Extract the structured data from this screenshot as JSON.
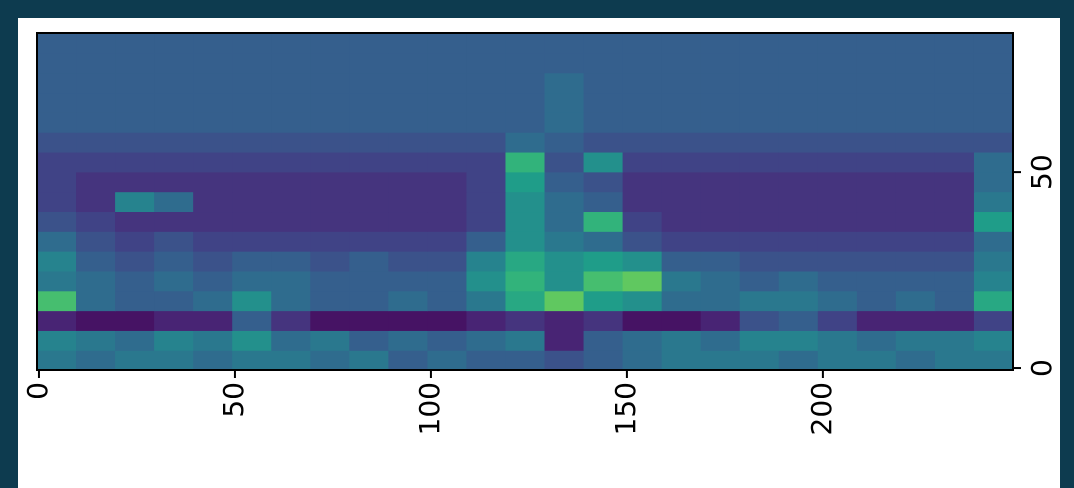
{
  "chart_data": {
    "type": "heatmap",
    "xlim": [
      -0.5,
      248.5
    ],
    "ylim": [
      -0.5,
      85.5
    ],
    "xticks": [
      0,
      50,
      100,
      150,
      200
    ],
    "yticks": [
      0,
      50
    ],
    "y_axis_position": "right",
    "colormap": "viridis",
    "z": [
      [
        0.4,
        0.35,
        0.4,
        0.4,
        0.35,
        0.4,
        0.4,
        0.35,
        0.4,
        0.3,
        0.35,
        0.3,
        0.3,
        0.25,
        0.3,
        0.35,
        0.4,
        0.4,
        0.4,
        0.35,
        0.4,
        0.4,
        0.35,
        0.4,
        0.4
      ],
      [
        0.45,
        0.4,
        0.35,
        0.45,
        0.4,
        0.5,
        0.35,
        0.4,
        0.3,
        0.35,
        0.3,
        0.35,
        0.4,
        0.1,
        0.3,
        0.35,
        0.4,
        0.35,
        0.45,
        0.45,
        0.4,
        0.35,
        0.4,
        0.4,
        0.45
      ],
      [
        0.1,
        0.05,
        0.05,
        0.1,
        0.1,
        0.3,
        0.15,
        0.05,
        0.05,
        0.05,
        0.05,
        0.1,
        0.15,
        0.1,
        0.15,
        0.05,
        0.05,
        0.1,
        0.25,
        0.3,
        0.2,
        0.1,
        0.1,
        0.1,
        0.2
      ],
      [
        0.7,
        0.35,
        0.3,
        0.3,
        0.35,
        0.5,
        0.35,
        0.3,
        0.3,
        0.35,
        0.3,
        0.4,
        0.6,
        0.75,
        0.55,
        0.5,
        0.35,
        0.35,
        0.4,
        0.4,
        0.35,
        0.3,
        0.35,
        0.3,
        0.6
      ],
      [
        0.4,
        0.35,
        0.3,
        0.35,
        0.3,
        0.35,
        0.35,
        0.3,
        0.3,
        0.3,
        0.3,
        0.5,
        0.65,
        0.5,
        0.7,
        0.75,
        0.4,
        0.35,
        0.3,
        0.35,
        0.3,
        0.3,
        0.3,
        0.3,
        0.45
      ],
      [
        0.45,
        0.3,
        0.25,
        0.3,
        0.25,
        0.3,
        0.3,
        0.25,
        0.3,
        0.25,
        0.25,
        0.45,
        0.6,
        0.5,
        0.55,
        0.5,
        0.3,
        0.3,
        0.25,
        0.25,
        0.25,
        0.25,
        0.25,
        0.25,
        0.4
      ],
      [
        0.35,
        0.25,
        0.2,
        0.25,
        0.2,
        0.2,
        0.2,
        0.2,
        0.2,
        0.2,
        0.2,
        0.3,
        0.5,
        0.4,
        0.35,
        0.25,
        0.2,
        0.2,
        0.2,
        0.2,
        0.2,
        0.2,
        0.2,
        0.2,
        0.35
      ],
      [
        0.25,
        0.2,
        0.15,
        0.15,
        0.15,
        0.15,
        0.15,
        0.15,
        0.15,
        0.15,
        0.15,
        0.2,
        0.5,
        0.35,
        0.65,
        0.2,
        0.15,
        0.15,
        0.15,
        0.15,
        0.15,
        0.15,
        0.15,
        0.15,
        0.55
      ],
      [
        0.2,
        0.15,
        0.45,
        0.35,
        0.15,
        0.15,
        0.15,
        0.15,
        0.15,
        0.15,
        0.15,
        0.2,
        0.5,
        0.35,
        0.3,
        0.15,
        0.15,
        0.15,
        0.15,
        0.15,
        0.15,
        0.15,
        0.15,
        0.15,
        0.4
      ],
      [
        0.2,
        0.15,
        0.15,
        0.15,
        0.15,
        0.15,
        0.15,
        0.15,
        0.15,
        0.15,
        0.15,
        0.2,
        0.55,
        0.3,
        0.25,
        0.15,
        0.15,
        0.15,
        0.15,
        0.15,
        0.15,
        0.15,
        0.15,
        0.15,
        0.35
      ],
      [
        0.2,
        0.2,
        0.2,
        0.2,
        0.2,
        0.2,
        0.2,
        0.2,
        0.2,
        0.2,
        0.2,
        0.2,
        0.65,
        0.25,
        0.5,
        0.2,
        0.2,
        0.2,
        0.2,
        0.2,
        0.2,
        0.2,
        0.2,
        0.2,
        0.35
      ],
      [
        0.25,
        0.25,
        0.25,
        0.25,
        0.25,
        0.25,
        0.25,
        0.25,
        0.25,
        0.25,
        0.25,
        0.25,
        0.35,
        0.3,
        0.25,
        0.25,
        0.25,
        0.25,
        0.25,
        0.25,
        0.25,
        0.25,
        0.25,
        0.25,
        0.25
      ],
      [
        0.3,
        0.3,
        0.3,
        0.3,
        0.3,
        0.3,
        0.3,
        0.3,
        0.3,
        0.3,
        0.3,
        0.3,
        0.3,
        0.35,
        0.3,
        0.3,
        0.3,
        0.3,
        0.3,
        0.3,
        0.3,
        0.3,
        0.3,
        0.3,
        0.3
      ],
      [
        0.3,
        0.3,
        0.3,
        0.3,
        0.3,
        0.3,
        0.3,
        0.3,
        0.3,
        0.3,
        0.3,
        0.3,
        0.3,
        0.35,
        0.3,
        0.3,
        0.3,
        0.3,
        0.3,
        0.3,
        0.3,
        0.3,
        0.3,
        0.3,
        0.3
      ],
      [
        0.3,
        0.3,
        0.3,
        0.3,
        0.3,
        0.3,
        0.3,
        0.3,
        0.3,
        0.3,
        0.3,
        0.3,
        0.3,
        0.35,
        0.3,
        0.3,
        0.3,
        0.3,
        0.3,
        0.3,
        0.3,
        0.3,
        0.3,
        0.3,
        0.3
      ],
      [
        0.3,
        0.3,
        0.3,
        0.3,
        0.3,
        0.3,
        0.3,
        0.3,
        0.3,
        0.3,
        0.3,
        0.3,
        0.3,
        0.3,
        0.3,
        0.3,
        0.3,
        0.3,
        0.3,
        0.3,
        0.3,
        0.3,
        0.3,
        0.3,
        0.3
      ],
      [
        0.3,
        0.3,
        0.3,
        0.3,
        0.3,
        0.3,
        0.3,
        0.3,
        0.3,
        0.3,
        0.3,
        0.3,
        0.3,
        0.3,
        0.3,
        0.3,
        0.3,
        0.3,
        0.3,
        0.3,
        0.3,
        0.3,
        0.3,
        0.3,
        0.3
      ]
    ]
  }
}
